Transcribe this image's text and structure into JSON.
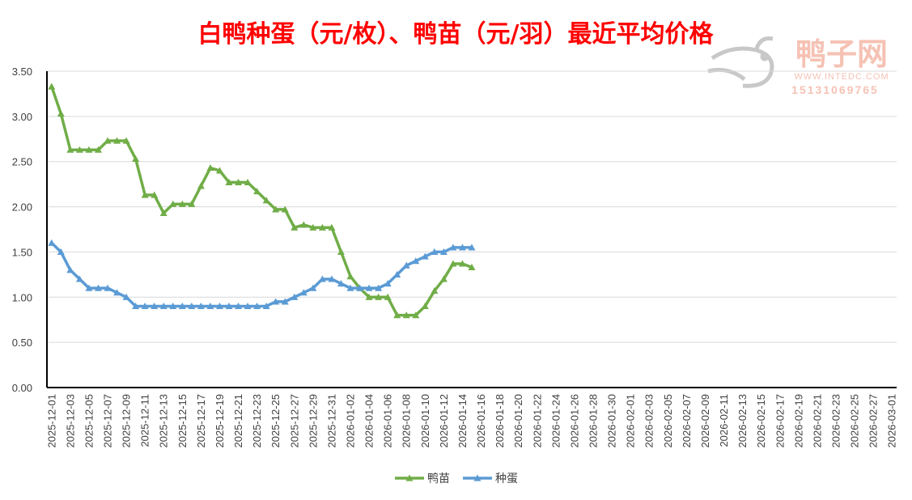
{
  "chart_data": {
    "type": "line",
    "title": "白鸭种蛋（元/枚）、鸭苗（元/羽）最近平均价格",
    "title_color": "#ff0000",
    "xlabel": "",
    "ylabel": "",
    "ylim": [
      0,
      3.5
    ],
    "y_ticks": [
      "0.00",
      "0.50",
      "1.00",
      "1.50",
      "2.00",
      "2.50",
      "3.00",
      "3.50"
    ],
    "x_range": [
      "2025-12-01",
      "2026-03-02"
    ],
    "x_tick_labels": [
      "2025-12-01",
      "2025-12-03",
      "2025-12-05",
      "2025-12-07",
      "2025-12-09",
      "2025-12-11",
      "2025-12-13",
      "2025-12-15",
      "2025-12-17",
      "2025-12-19",
      "2025-12-21",
      "2025-12-23",
      "2025-12-25",
      "2025-12-27",
      "2025-12-29",
      "2025-12-31",
      "2026-01-02",
      "2026-01-04",
      "2026-01-06",
      "2026-01-08",
      "2026-01-10",
      "2026-01-12",
      "2026-01-14",
      "2026-01-16",
      "2026-01-18",
      "2026-01-20",
      "2026-01-22",
      "2026-01-24",
      "2026-01-26",
      "2026-01-28",
      "2026-01-30",
      "2026-02-01",
      "2026-02-03",
      "2026-02-05",
      "2026-02-07",
      "2026-02-09",
      "2026-02-11",
      "2026-02-13",
      "2026-02-15",
      "2026-02-17",
      "2026-02-19",
      "2026-02-21",
      "2026-02-23",
      "2026-02-25",
      "2026-02-27",
      "2026-03-01"
    ],
    "x": [
      "2025-12-01",
      "2025-12-02",
      "2025-12-03",
      "2025-12-04",
      "2025-12-05",
      "2025-12-06",
      "2025-12-07",
      "2025-12-08",
      "2025-12-09",
      "2025-12-10",
      "2025-12-11",
      "2025-12-12",
      "2025-12-13",
      "2025-12-14",
      "2025-12-15",
      "2025-12-16",
      "2025-12-17",
      "2025-12-18",
      "2025-12-19",
      "2025-12-20",
      "2025-12-21",
      "2025-12-22",
      "2025-12-23",
      "2025-12-24",
      "2025-12-25",
      "2025-12-26",
      "2025-12-27",
      "2025-12-28",
      "2025-12-29",
      "2025-12-30",
      "2025-12-31",
      "2026-01-01",
      "2026-01-02",
      "2026-01-03",
      "2026-01-04",
      "2026-01-05",
      "2026-01-06",
      "2026-01-07",
      "2026-01-08",
      "2026-01-09",
      "2026-01-10",
      "2026-01-11",
      "2026-01-12",
      "2026-01-13",
      "2026-01-14",
      "2026-01-15"
    ],
    "grid": true,
    "legend_position": "bottom",
    "series": [
      {
        "name": "鸭苗",
        "color": "#70ad47",
        "marker": "triangle",
        "values": [
          3.33,
          3.03,
          2.63,
          2.63,
          2.63,
          2.63,
          2.73,
          2.73,
          2.73,
          2.53,
          2.13,
          2.13,
          1.93,
          2.03,
          2.03,
          2.03,
          2.23,
          2.43,
          2.4,
          2.27,
          2.27,
          2.27,
          2.17,
          2.07,
          1.97,
          1.97,
          1.77,
          1.8,
          1.77,
          1.77,
          1.77,
          1.5,
          1.23,
          1.1,
          1.0,
          1.0,
          1.0,
          0.8,
          0.8,
          0.8,
          0.9,
          1.07,
          1.2,
          1.37,
          1.37,
          1.33
        ]
      },
      {
        "name": "种蛋",
        "color": "#5b9bd5",
        "marker": "triangle",
        "values": [
          1.6,
          1.5,
          1.3,
          1.2,
          1.1,
          1.1,
          1.1,
          1.05,
          1.0,
          0.9,
          0.9,
          0.9,
          0.9,
          0.9,
          0.9,
          0.9,
          0.9,
          0.9,
          0.9,
          0.9,
          0.9,
          0.9,
          0.9,
          0.9,
          0.95,
          0.95,
          1.0,
          1.05,
          1.1,
          1.2,
          1.2,
          1.15,
          1.1,
          1.1,
          1.1,
          1.1,
          1.15,
          1.25,
          1.35,
          1.4,
          1.45,
          1.5,
          1.5,
          1.55,
          1.55,
          1.55
        ]
      }
    ]
  },
  "watermark": {
    "brand": "鸭子网",
    "site": "WWW.INTEDC.COM",
    "phone": "15131069765",
    "color": "#f4b8a8",
    "icon": "duck-logo-icon"
  }
}
